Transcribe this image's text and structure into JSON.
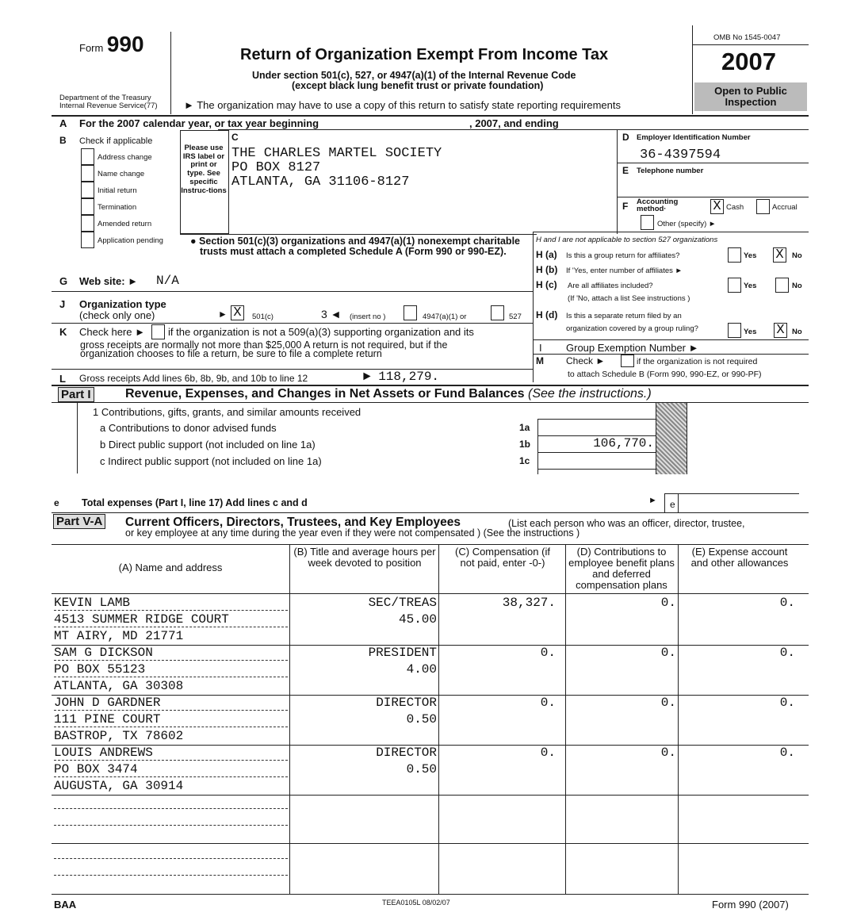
{
  "header": {
    "form_word": "Form",
    "form_number": "990",
    "dept": "Department of the Treasury",
    "irs": "Internal Revenue Service(77)",
    "title": "Return of Organization Exempt From Income Tax",
    "subtitle1": "Under section 501(c), 527, or 4947(a)(1) of the Internal Revenue Code",
    "subtitle2": "(except black lung benefit trust or private foundation)",
    "note": "► The organization may have to use a copy of this return to satisfy state reporting requirements",
    "omb": "OMB No 1545-0047",
    "year": "2007",
    "open": "Open to Public Inspection"
  },
  "lineA": {
    "letter": "A",
    "text": "For the 2007 calendar year, or tax year beginning",
    "mid": ", 2007, and ending"
  },
  "sectionB": {
    "letter": "B",
    "label": "Check if applicable",
    "items": [
      {
        "label": "Address change",
        "checked": false
      },
      {
        "label": "Name change",
        "checked": false
      },
      {
        "label": "Initial return",
        "checked": false
      },
      {
        "label": "Termination",
        "checked": false
      },
      {
        "label": "Amended return",
        "checked": false
      },
      {
        "label": "Application pending",
        "checked": false
      }
    ]
  },
  "label_note": "Please use IRS label or print or type. See specific Instruc-tions",
  "sectionC": {
    "letter": "C",
    "name": "THE CHARLES MARTEL SOCIETY",
    "address1": "PO BOX 8127",
    "address2": "ATLANTA, GA 31106-8127"
  },
  "sectionD": {
    "letter": "D",
    "label": "Employer Identification Number",
    "ein": "36-4397594"
  },
  "sectionE": {
    "letter": "E",
    "label": "Telephone number"
  },
  "sectionF": {
    "letter": "F",
    "label": "Accounting method·",
    "cash": "Cash",
    "accrual": "Accrual",
    "other": "Other (specify) ►",
    "mark": "X"
  },
  "schedule_note": "Section 501(c)(3) organizations and 4947(a)(1) nonexempt charitable trusts must attach a completed Schedule A (Form 990 or 990-EZ).",
  "sectionH": {
    "intro": "H and I are not applicable to section 527 organizations",
    "ha_label": "H (a)",
    "ha": "Is this a group return for affiliates?",
    "hb_label": "H (b)",
    "hb": "If 'Yes, enter number of affiliates ►",
    "hc_label": "H (c)",
    "hc": "Are all affiliates included?",
    "hc2": "(If 'No, attach a list See instructions )",
    "hd_label": "H (d)",
    "hd": "Is this a separate return filed by an",
    "hd2": "organization covered by a group ruling?",
    "yes": "Yes",
    "no": "No",
    "mark": "X"
  },
  "sectionI": {
    "letter": "I",
    "text": "Group Exemption Number ►"
  },
  "sectionM": {
    "letter": "M",
    "text1": "Check ►",
    "text2": "if the organization is not required",
    "text3": "to attach Schedule B (Form 990, 990-EZ, or 990-PF)"
  },
  "sectionG": {
    "letter": "G",
    "label": "Web site: ►",
    "value": "N/A"
  },
  "sectionJ": {
    "letter": "J",
    "label": "Organization type",
    "sub": "(check only one)",
    "arrow": "►",
    "mark": "X",
    "c501": "501(c)",
    "insert_val": "3 ◄",
    "insert": "(insert no )",
    "a4947": "4947(a)(1) or",
    "s527": "527"
  },
  "sectionK": {
    "letter": "K",
    "text1": "Check here ►",
    "text2": "if the organization is not a 509(a)(3) supporting organization and its",
    "text3": "gross receipts are normally not more than $25,000 A return is not required, but if the",
    "text4": "organization chooses to file a return, be sure to file a complete return"
  },
  "sectionL": {
    "letter": "L",
    "text": "Gross receipts Add lines 6b, 8b, 9b, and 10b to line 12",
    "value": "► 118,279."
  },
  "part1": {
    "label": "Part I",
    "title": "Revenue, Expenses, and Changes in Net Assets or Fund Balances",
    "see": "(See the instructions.)",
    "line1": "1  Contributions, gifts, grants, and similar amounts received",
    "lines": [
      {
        "text": "a Contributions to donor advised funds",
        "ref": "1a",
        "value": ""
      },
      {
        "text": "b Direct public support (not included on line 1a)",
        "ref": "1b",
        "value": "106,770."
      },
      {
        "text": "c Indirect public support (not included on line 1a)",
        "ref": "1c",
        "value": ""
      }
    ],
    "e_letter": "e",
    "e_text": "Total expenses (Part I, line 17) Add lines c and d",
    "e_ref": "e",
    "e_arrow": "►"
  },
  "part5a": {
    "label": "Part V-A",
    "title": "Current Officers, Directors, Trustees, and Key Employees",
    "desc1": "(List each person who was an officer, director, trustee,",
    "desc2": "or key employee at any time during the year even if they were not compensated ) (See the instructions )",
    "columns": [
      "(A) Name and address",
      "(B) Title and average hours per week devoted to position",
      "(C) Compensation (if not paid, enter -0-)",
      "(D) Contributions to employee benefit plans and deferred compensation plans",
      "(E) Expense account and other allowances"
    ],
    "rows": [
      {
        "name": "KEVIN LAMB",
        "addr1": "4513 SUMMER RIDGE COURT",
        "addr2": "MT AIRY, MD 21771",
        "title": "SEC/TREAS",
        "hours": "45.00",
        "comp": "38,327.",
        "contrib": "0.",
        "expense": "0."
      },
      {
        "name": "SAM G DICKSON",
        "addr1": "PO BOX 55123",
        "addr2": "ATLANTA, GA 30308",
        "title": "PRESIDENT",
        "hours": "4.00",
        "comp": "0.",
        "contrib": "0.",
        "expense": "0."
      },
      {
        "name": "JOHN D GARDNER",
        "addr1": "111 PINE COURT",
        "addr2": "BASTROP, TX 78602",
        "title": "DIRECTOR",
        "hours": "0.50",
        "comp": "0.",
        "contrib": "0.",
        "expense": "0."
      },
      {
        "name": "LOUIS ANDREWS",
        "addr1": "PO BOX 3474",
        "addr2": "AUGUSTA, GA 30914",
        "title": "DIRECTOR",
        "hours": "0.50",
        "comp": "0.",
        "contrib": "0.",
        "expense": "0."
      }
    ]
  },
  "footer": {
    "baa": "BAA",
    "code": "TEEA0105L 08/02/07",
    "form": "Form 990 (2007)"
  }
}
